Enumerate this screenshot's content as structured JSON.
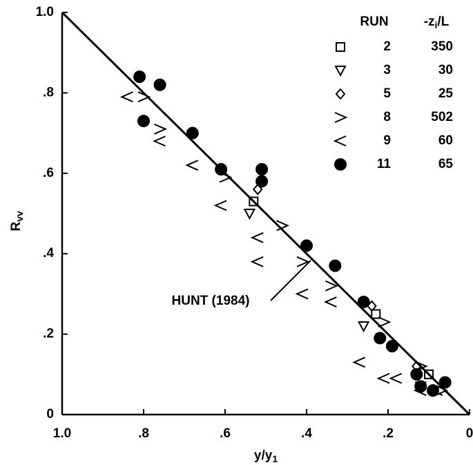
{
  "chart_data": {
    "type": "scatter",
    "xlabel": [
      "y/y",
      "1"
    ],
    "ylabel": [
      "R",
      "vv"
    ],
    "xlim": [
      1,
      0
    ],
    "ylim": [
      0,
      1
    ],
    "xticks": [
      {
        "value": 1,
        "label": "1.0"
      },
      {
        "value": 0.8,
        "label": ".8"
      },
      {
        "value": 0.6,
        "label": ".6"
      },
      {
        "value": 0.4,
        "label": ".4"
      },
      {
        "value": 0.2,
        "label": ".2"
      },
      0
    ],
    "yticks": [
      0,
      {
        "value": 0.2,
        "label": ".2"
      },
      {
        "value": 0.4,
        "label": ".4"
      },
      {
        "value": 0.6,
        "label": ".6"
      },
      {
        "value": 0.8,
        "label": ".8"
      },
      {
        "value": 1,
        "label": "1.0"
      }
    ],
    "legend_headers": [
      "RUN",
      [
        "-z",
        "i",
        "/L"
      ]
    ],
    "color": "#000000",
    "series": [
      {
        "name": "2",
        "zi_L": 350,
        "marker": "square",
        "x": [
          0.53,
          0.23,
          0.1
        ],
        "y": [
          0.53,
          0.25,
          0.1
        ]
      },
      {
        "name": "3",
        "zi_L": 30,
        "marker": "triangle-down",
        "x": [
          0.54,
          0.26,
          0.12
        ],
        "y": [
          0.5,
          0.22,
          0.07
        ]
      },
      {
        "name": "5",
        "zi_L": 25,
        "marker": "diamond",
        "x": [
          0.52,
          0.24,
          0.13
        ],
        "y": [
          0.56,
          0.27,
          0.12
        ]
      },
      {
        "name": "8",
        "zi_L": 502,
        "marker": "gt",
        "x": [
          0.8,
          0.76,
          0.6,
          0.46,
          0.41,
          0.34,
          0.21,
          0.12,
          0.07
        ],
        "y": [
          0.79,
          0.71,
          0.59,
          0.47,
          0.38,
          0.32,
          0.23,
          0.12,
          0.06
        ]
      },
      {
        "name": "9",
        "zi_L": 60,
        "marker": "lt",
        "x": [
          0.84,
          0.76,
          0.68,
          0.61,
          0.52,
          0.52,
          0.41,
          0.34,
          0.27,
          0.21,
          0.18,
          0.12,
          0.08
        ],
        "y": [
          0.79,
          0.68,
          0.62,
          0.52,
          0.44,
          0.38,
          0.3,
          0.28,
          0.13,
          0.09,
          0.09,
          0.06,
          0.06
        ]
      },
      {
        "name": "11",
        "zi_L": 65,
        "marker": "circle",
        "x": [
          0.81,
          0.76,
          0.8,
          0.68,
          0.61,
          0.51,
          0.51,
          0.4,
          0.33,
          0.26,
          0.22,
          0.19,
          0.13,
          0.12,
          0.09,
          0.06
        ],
        "y": [
          0.84,
          0.82,
          0.73,
          0.7,
          0.61,
          0.61,
          0.58,
          0.42,
          0.37,
          0.28,
          0.19,
          0.17,
          0.1,
          0.07,
          0.06,
          0.08
        ]
      }
    ],
    "fit_line": {
      "x": [
        1,
        0
      ],
      "y": [
        1,
        0
      ]
    },
    "annotation": "HUNT (1984)"
  }
}
